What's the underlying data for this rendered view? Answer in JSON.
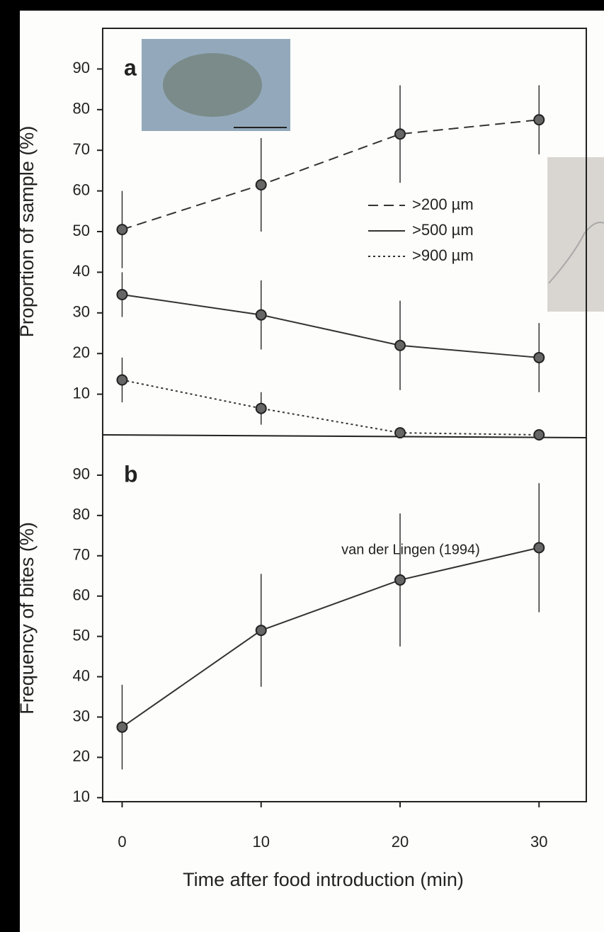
{
  "chart_data": [
    {
      "type": "line",
      "panel_label": "a",
      "ylabel": "Proportion of sample (%)",
      "x": [
        0,
        10,
        20,
        30
      ],
      "xlim": [
        -1.4,
        33.4
      ],
      "ylim": [
        0,
        100
      ],
      "yticks": [
        10,
        20,
        30,
        40,
        50,
        60,
        70,
        80,
        90
      ],
      "series": [
        {
          "name": ">200 µm",
          "color": "#333333",
          "style": "dashed",
          "values": [
            50.5,
            61.5,
            74,
            77.5
          ],
          "errors": [
            9.5,
            11.5,
            12,
            8.5
          ]
        },
        {
          "name": ">500 µm",
          "color": "#333333",
          "style": "solid",
          "values": [
            34.5,
            29.5,
            22,
            19
          ],
          "errors": [
            5.5,
            8.5,
            11,
            8.5
          ]
        },
        {
          "name": ">900 µm",
          "color": "#333333",
          "style": "dotted",
          "values": [
            13.5,
            6.5,
            0.5,
            0
          ],
          "errors": [
            5.5,
            4,
            0,
            0
          ]
        }
      ]
    },
    {
      "type": "line",
      "panel_label": "b",
      "ylabel": "Frequency of bites (%)",
      "xlabel": "Time after food introduction (min)",
      "annotation": "van der Lingen (1994)",
      "x": [
        0,
        10,
        20,
        30
      ],
      "xlim": [
        -1.4,
        33.4
      ],
      "xticks": [
        0,
        10,
        20,
        30
      ],
      "ylim": [
        9,
        100
      ],
      "yticks": [
        10,
        20,
        30,
        40,
        50,
        60,
        70,
        80,
        90
      ],
      "series": [
        {
          "color": "#333333",
          "style": "solid",
          "values": [
            27.5,
            51.5,
            64,
            72
          ],
          "errors": [
            10.5,
            14,
            16.5,
            16
          ]
        }
      ]
    }
  ]
}
